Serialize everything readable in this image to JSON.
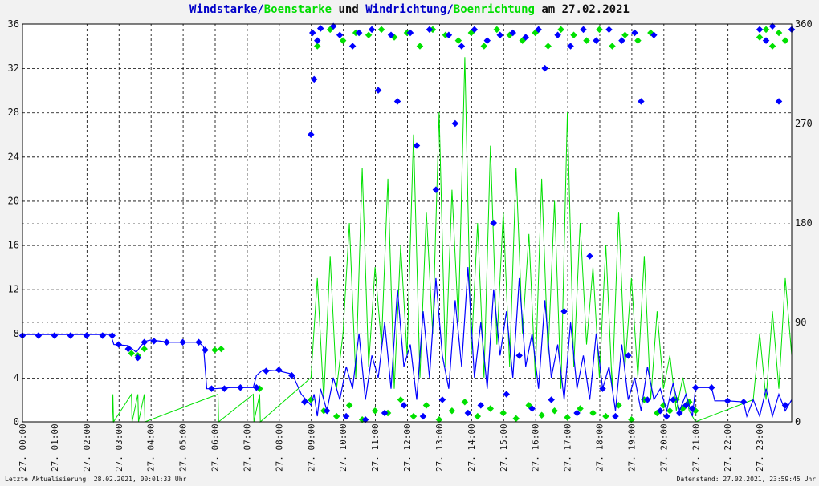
{
  "title": {
    "part1": "Windstarke",
    "sep1": "/",
    "part2": "Boenstarke",
    "part3": " und ",
    "part4": "Windrichtung",
    "sep2": "/",
    "part5": "Boenrichtung",
    "part6": " am 27.02.2021"
  },
  "footer": {
    "left": "Letzte Aktualisierung: 28.02.2021, 00:01:33 Uhr",
    "right": "Datenstand: 27.02.2021, 23:59:45 Uhr"
  },
  "chart_data": {
    "type": "line",
    "title": "Windstarke/Boenstarke und Windrichtung/Boenrichtung am 27.02.2021",
    "xlabel": "",
    "ylabel": "",
    "grid": true,
    "xlim": [
      0,
      24
    ],
    "ylim_left": [
      0,
      36
    ],
    "ylim_right": [
      0,
      360
    ],
    "x_ticks": [
      "27. 00:00",
      "27. 01:00",
      "27. 02:00",
      "27. 03:00",
      "27. 04:00",
      "27. 05:00",
      "27. 06:00",
      "27. 07:00",
      "27. 08:00",
      "27. 09:00",
      "27. 10:00",
      "27. 11:00",
      "27. 12:00",
      "27. 13:00",
      "27. 14:00",
      "27. 15:00",
      "27. 16:00",
      "27. 17:00",
      "27. 18:00",
      "27. 19:00",
      "27. 20:00",
      "27. 21:00",
      "27. 22:00",
      "27. 23:00"
    ],
    "y_ticks_left": [
      0,
      4,
      8,
      12,
      16,
      20,
      24,
      28,
      32,
      36
    ],
    "y_ticks_right": [
      0,
      90,
      180,
      270,
      360
    ],
    "colors": {
      "wind": "#0000ff",
      "gust": "#00e000",
      "background": "#ffffff",
      "grid": "#000000"
    },
    "series": [
      {
        "name": "Windstarke",
        "axis": "left",
        "style": "line",
        "x": [
          0.0,
          2.75,
          2.85,
          3.3,
          3.55,
          3.7,
          3.85,
          4.0,
          4.3,
          4.6,
          5.0,
          5.5,
          5.65,
          5.75,
          5.95,
          6.0,
          6.5,
          7.2,
          7.3,
          7.5,
          8.0,
          8.45,
          8.5,
          8.7,
          9.0,
          9.1,
          9.2,
          9.3,
          9.5,
          9.7,
          9.9,
          10.1,
          10.3,
          10.5,
          10.7,
          10.9,
          11.1,
          11.3,
          11.5,
          11.7,
          11.9,
          12.1,
          12.3,
          12.5,
          12.7,
          12.9,
          13.1,
          13.3,
          13.5,
          13.7,
          13.9,
          14.1,
          14.3,
          14.5,
          14.7,
          14.9,
          15.1,
          15.3,
          15.5,
          15.7,
          15.9,
          16.1,
          16.3,
          16.5,
          16.7,
          16.9,
          17.1,
          17.3,
          17.5,
          17.7,
          17.9,
          18.1,
          18.3,
          18.5,
          18.7,
          18.9,
          19.1,
          19.3,
          19.5,
          19.7,
          19.9,
          20.1,
          20.3,
          20.5,
          20.7,
          20.9,
          21.0,
          21.5,
          21.6,
          22.0,
          22.5,
          22.6,
          22.8,
          23.0,
          23.2,
          23.4,
          23.6,
          23.8,
          24.0
        ],
        "y": [
          7.9,
          7.9,
          7.0,
          6.9,
          6.3,
          6.9,
          7.3,
          7.4,
          7.3,
          7.2,
          7.2,
          7.2,
          6.8,
          3.0,
          3.0,
          3.0,
          3.1,
          3.1,
          4.2,
          4.7,
          4.6,
          4.3,
          3.8,
          2.5,
          1.5,
          2.5,
          0.5,
          3.0,
          1.0,
          4.0,
          2.0,
          5.0,
          3.0,
          8.0,
          2.0,
          6.0,
          4.0,
          9.0,
          3.0,
          12.0,
          5.0,
          7.0,
          2.0,
          10.0,
          4.0,
          13.0,
          6.0,
          3.0,
          11.0,
          5.0,
          14.0,
          4.0,
          9.0,
          3.0,
          12.0,
          6.0,
          10.0,
          4.0,
          13.0,
          5.0,
          8.0,
          3.0,
          11.0,
          4.0,
          7.0,
          2.0,
          9.0,
          3.0,
          6.0,
          2.0,
          8.0,
          3.0,
          5.0,
          1.0,
          7.0,
          2.0,
          4.0,
          1.0,
          5.0,
          2.0,
          3.0,
          1.0,
          3.5,
          1.0,
          2.5,
          0.5,
          3.1,
          3.1,
          1.9,
          1.9,
          1.8,
          0.5,
          2.0,
          0.5,
          3.0,
          0.5,
          2.5,
          1.0,
          2.0
        ]
      },
      {
        "name": "Boenstarke",
        "axis": "left",
        "style": "line",
        "x": [
          2.8,
          2.82,
          2.84,
          3.4,
          3.42,
          3.6,
          3.62,
          3.8,
          3.82,
          6.1,
          6.12,
          7.2,
          7.22,
          7.4,
          7.42,
          9.0,
          9.2,
          9.4,
          9.6,
          9.8,
          10.0,
          10.2,
          10.4,
          10.6,
          10.8,
          11.0,
          11.2,
          11.4,
          11.6,
          11.8,
          12.0,
          12.2,
          12.4,
          12.6,
          12.8,
          13.0,
          13.2,
          13.4,
          13.6,
          13.8,
          14.0,
          14.2,
          14.4,
          14.6,
          14.8,
          15.0,
          15.2,
          15.4,
          15.6,
          15.8,
          16.0,
          16.2,
          16.4,
          16.6,
          16.8,
          17.0,
          17.2,
          17.4,
          17.6,
          17.8,
          18.0,
          18.2,
          18.4,
          18.6,
          18.8,
          19.0,
          19.2,
          19.4,
          19.6,
          19.8,
          20.0,
          20.2,
          20.4,
          20.6,
          20.8,
          21.0,
          22.8,
          23.0,
          23.2,
          23.4,
          23.6,
          23.8,
          24.0
        ],
        "y": [
          0,
          2.5,
          0,
          2.5,
          0,
          2.5,
          0,
          2.5,
          0,
          2.5,
          0,
          2.5,
          0,
          2.5,
          0,
          4,
          13,
          2,
          15,
          3,
          8,
          18,
          4,
          23,
          5,
          14,
          7,
          22,
          3,
          16,
          6,
          26,
          4,
          19,
          8,
          28,
          5,
          21,
          9,
          33,
          6,
          18,
          4,
          25,
          7,
          19,
          5,
          23,
          8,
          17,
          4,
          22,
          6,
          20,
          3,
          28,
          5,
          18,
          7,
          14,
          4,
          16,
          3,
          19,
          5,
          13,
          4,
          15,
          2,
          10,
          3,
          6,
          1,
          4,
          1,
          0,
          2,
          8,
          2,
          10,
          3,
          13,
          6
        ]
      },
      {
        "name": "Windrichtung",
        "axis": "right",
        "style": "markers",
        "x": [
          0.0,
          0.5,
          1.0,
          1.5,
          2.0,
          2.5,
          2.8,
          3.0,
          3.3,
          3.6,
          3.8,
          4.1,
          4.5,
          5.0,
          5.5,
          5.7,
          5.9,
          6.3,
          6.8,
          7.3,
          7.6,
          8.0,
          8.4,
          8.8,
          9.0,
          9.05,
          9.1,
          9.2,
          9.3,
          9.5,
          9.7,
          9.9,
          10.1,
          10.3,
          10.5,
          10.7,
          10.9,
          11.1,
          11.3,
          11.5,
          11.7,
          11.9,
          12.1,
          12.3,
          12.5,
          12.7,
          12.9,
          13.1,
          13.3,
          13.5,
          13.7,
          13.9,
          14.1,
          14.3,
          14.5,
          14.7,
          14.9,
          15.1,
          15.3,
          15.5,
          15.7,
          15.9,
          16.1,
          16.3,
          16.5,
          16.7,
          16.9,
          17.1,
          17.3,
          17.5,
          17.7,
          17.9,
          18.1,
          18.3,
          18.5,
          18.7,
          18.9,
          19.1,
          19.3,
          19.5,
          19.7,
          19.9,
          20.1,
          20.3,
          20.5,
          20.7,
          20.9,
          21.0,
          21.5,
          22.0,
          22.5,
          23.0,
          23.2,
          23.4,
          23.6,
          23.8,
          24.0
        ],
        "y": [
          78,
          78,
          78,
          78,
          78,
          78,
          78,
          70,
          66,
          58,
          72,
          73,
          72,
          72,
          72,
          65,
          30,
          30,
          31,
          31,
          46,
          47,
          42,
          18,
          260,
          352,
          310,
          345,
          356,
          10,
          358,
          350,
          5,
          340,
          352,
          2,
          355,
          300,
          8,
          350,
          290,
          15,
          352,
          250,
          5,
          355,
          210,
          20,
          350,
          270,
          340,
          8,
          355,
          15,
          345,
          180,
          350,
          25,
          352,
          60,
          348,
          12,
          355,
          320,
          20,
          350,
          100,
          340,
          8,
          355,
          150,
          345,
          30,
          355,
          5,
          345,
          60,
          352,
          290,
          20,
          350,
          10,
          5,
          20,
          8,
          15,
          12,
          31,
          31,
          19,
          18,
          355,
          345,
          358,
          290,
          15,
          355
        ]
      },
      {
        "name": "Boenrichtung",
        "axis": "right",
        "style": "markers",
        "x": [
          3.4,
          3.6,
          3.8,
          6.0,
          6.2,
          7.4,
          9.0,
          9.2,
          9.4,
          9.6,
          9.8,
          10.0,
          10.2,
          10.4,
          10.6,
          10.8,
          11.0,
          11.2,
          11.4,
          11.6,
          11.8,
          12.0,
          12.2,
          12.4,
          12.6,
          12.8,
          13.0,
          13.2,
          13.4,
          13.6,
          13.8,
          14.0,
          14.2,
          14.4,
          14.6,
          14.8,
          15.0,
          15.2,
          15.4,
          15.6,
          15.8,
          16.0,
          16.2,
          16.4,
          16.6,
          16.8,
          17.0,
          17.2,
          17.4,
          17.6,
          17.8,
          18.0,
          18.2,
          18.4,
          18.6,
          18.8,
          19.0,
          19.2,
          19.4,
          19.6,
          19.8,
          20.0,
          20.2,
          20.4,
          20.6,
          20.8,
          21.0,
          23.0,
          23.2,
          23.4,
          23.6,
          23.8
        ],
        "y": [
          62,
          60,
          66,
          65,
          66,
          30,
          20,
          340,
          10,
          355,
          5,
          345,
          15,
          352,
          2,
          350,
          10,
          355,
          8,
          348,
          20,
          352,
          5,
          340,
          15,
          355,
          2,
          350,
          10,
          345,
          18,
          352,
          5,
          340,
          12,
          355,
          8,
          350,
          3,
          345,
          15,
          352,
          6,
          340,
          10,
          355,
          4,
          350,
          12,
          345,
          8,
          355,
          5,
          340,
          15,
          350,
          2,
          345,
          20,
          352,
          8,
          15,
          10,
          20,
          12,
          18,
          10,
          348,
          355,
          340,
          352,
          345
        ]
      }
    ]
  }
}
